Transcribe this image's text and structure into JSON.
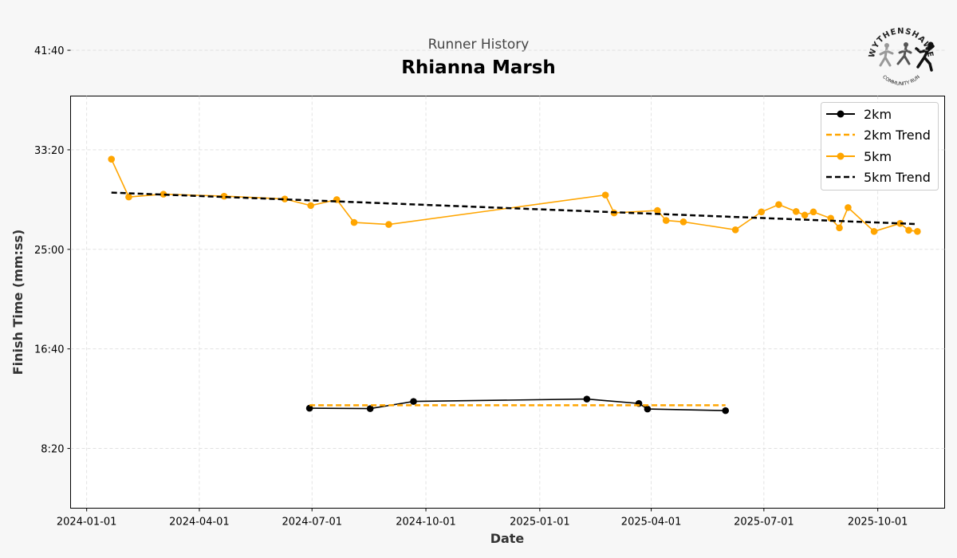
{
  "header": {
    "subtitle": "Runner History",
    "title": "Rhianna Marsh"
  },
  "logo": {
    "top_text": "WYTHENSHAWE",
    "bottom_text": "COMMUNITY RUN"
  },
  "colors": {
    "orange": "#ffa500",
    "black": "#000000"
  },
  "chart_data": {
    "type": "line",
    "xlabel": "Date",
    "ylabel": "Finish Time (mm:ss)",
    "xlim": [
      "2023-12-19",
      "2025-11-24"
    ],
    "ylim": [
      200,
      2270
    ],
    "x_ticks": [
      "2024-01-01",
      "2024-04-01",
      "2024-07-01",
      "2024-10-01",
      "2025-01-01",
      "2025-04-01",
      "2025-07-01",
      "2025-10-01"
    ],
    "y_ticks": [
      500,
      1000,
      1500,
      2000,
      2500
    ],
    "y_tick_labels": [
      "8:20",
      "16:40",
      "25:00",
      "33:20",
      "41:40"
    ],
    "grid": true,
    "legend_position": "top-right",
    "series": [
      {
        "name": "2km",
        "style": "line-marker",
        "color": "#000000",
        "points": [
          {
            "x": "2024-06-29",
            "y": 702
          },
          {
            "x": "2024-08-17",
            "y": 700
          },
          {
            "x": "2024-09-21",
            "y": 736
          },
          {
            "x": "2025-02-08",
            "y": 748
          },
          {
            "x": "2025-03-22",
            "y": 726
          },
          {
            "x": "2025-03-29",
            "y": 698
          },
          {
            "x": "2025-05-31",
            "y": 690
          }
        ]
      },
      {
        "name": "2km Trend",
        "style": "dashed",
        "color": "#ffa500",
        "points": [
          {
            "x": "2024-06-29",
            "y": 717
          },
          {
            "x": "2025-05-31",
            "y": 717
          }
        ]
      },
      {
        "name": "5km",
        "style": "line-marker",
        "color": "#ffa500",
        "points": [
          {
            "x": "2024-01-21",
            "y": 1953
          },
          {
            "x": "2024-02-04",
            "y": 1763
          },
          {
            "x": "2024-03-03",
            "y": 1777
          },
          {
            "x": "2024-04-21",
            "y": 1767
          },
          {
            "x": "2024-06-09",
            "y": 1753
          },
          {
            "x": "2024-06-30",
            "y": 1720
          },
          {
            "x": "2024-07-21",
            "y": 1750
          },
          {
            "x": "2024-08-04",
            "y": 1635
          },
          {
            "x": "2024-09-01",
            "y": 1625
          },
          {
            "x": "2025-02-23",
            "y": 1773
          },
          {
            "x": "2025-03-02",
            "y": 1683
          },
          {
            "x": "2025-04-06",
            "y": 1695
          },
          {
            "x": "2025-04-13",
            "y": 1645
          },
          {
            "x": "2025-04-27",
            "y": 1638
          },
          {
            "x": "2025-06-08",
            "y": 1598
          },
          {
            "x": "2025-06-29",
            "y": 1688
          },
          {
            "x": "2025-07-13",
            "y": 1725
          },
          {
            "x": "2025-07-27",
            "y": 1690
          },
          {
            "x": "2025-08-03",
            "y": 1672
          },
          {
            "x": "2025-08-10",
            "y": 1688
          },
          {
            "x": "2025-08-24",
            "y": 1656
          },
          {
            "x": "2025-08-31",
            "y": 1608
          },
          {
            "x": "2025-09-07",
            "y": 1710
          },
          {
            "x": "2025-09-28",
            "y": 1590
          },
          {
            "x": "2025-10-19",
            "y": 1630
          },
          {
            "x": "2025-10-26",
            "y": 1596
          },
          {
            "x": "2025-11-02",
            "y": 1590
          }
        ]
      },
      {
        "name": "5km Trend",
        "style": "dashed",
        "color": "#000000",
        "points": [
          {
            "x": "2024-01-21",
            "y": 1785
          },
          {
            "x": "2025-11-02",
            "y": 1627
          }
        ]
      }
    ]
  }
}
